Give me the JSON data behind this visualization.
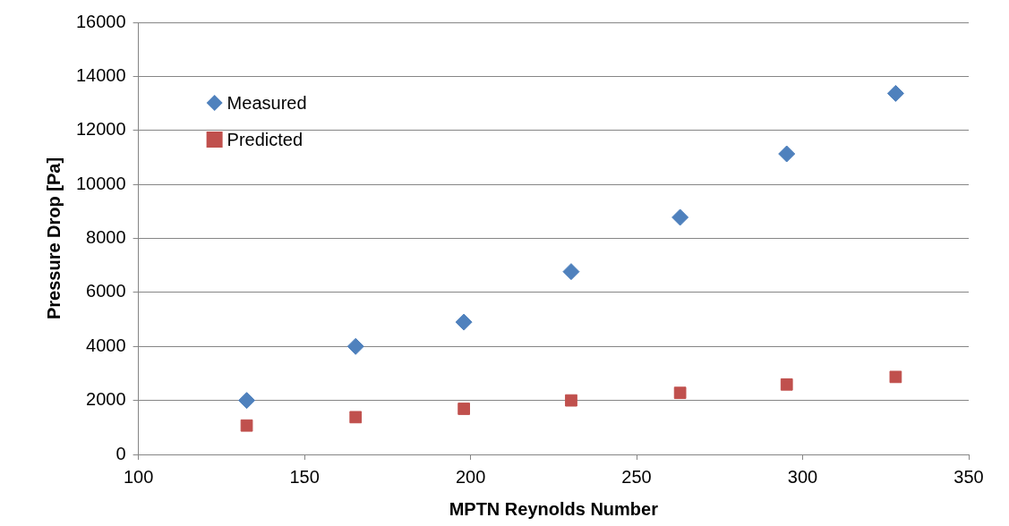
{
  "chart_data": {
    "type": "scatter",
    "xlabel": "MPTN Reynolds Number",
    "ylabel": "Pressure Drop [Pa]",
    "xlim": [
      100,
      350
    ],
    "xticks": [
      100,
      150,
      200,
      250,
      300,
      350
    ],
    "ylim": [
      0,
      16000
    ],
    "yticks": [
      0,
      2000,
      4000,
      6000,
      8000,
      10000,
      12000,
      14000,
      16000
    ],
    "grid": "y",
    "legend": "top left",
    "series": [
      {
        "name": "Measured",
        "color": "#4f81bd",
        "marker": "diamond",
        "x": [
          132.6,
          165.4,
          198,
          230.3,
          263.1,
          295.2,
          328
        ],
        "values": [
          2000,
          4000,
          4900,
          6770,
          8780,
          11130,
          13370
        ]
      },
      {
        "name": "Predicted",
        "color": "#c0504d",
        "marker": "square",
        "x": [
          132.6,
          165.4,
          198,
          230.3,
          263.1,
          295.2,
          328
        ],
        "values": [
          1070,
          1380,
          1690,
          2000,
          2280,
          2590,
          2870
        ]
      }
    ]
  }
}
